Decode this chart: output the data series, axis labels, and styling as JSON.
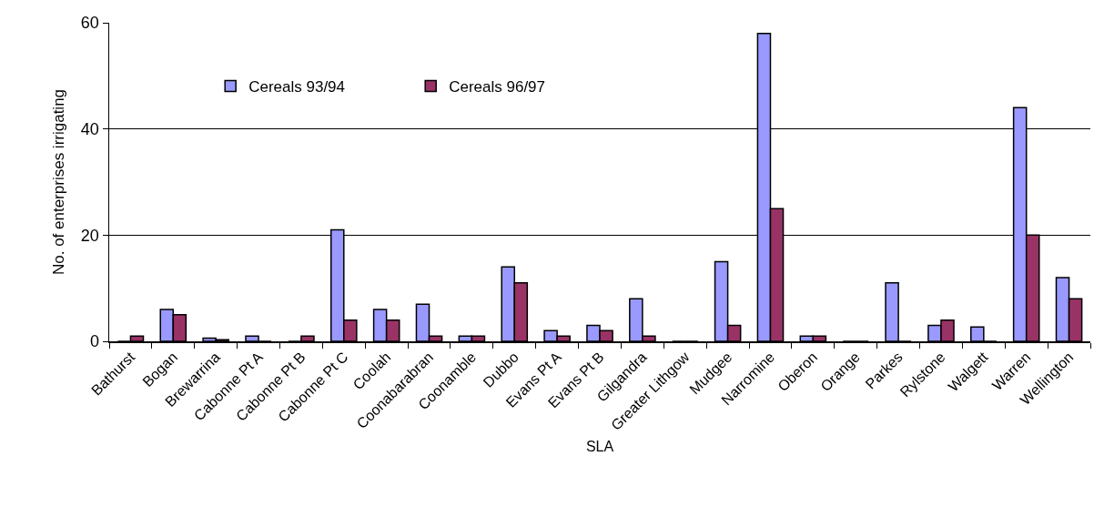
{
  "chart_data": {
    "type": "bar",
    "xlabel": "SLA",
    "ylabel": "No. of enterprises irrigating",
    "categories": [
      "Bathurst",
      "Bogan",
      "Brewarrina",
      "Cabonne Pt A",
      "Cabonne Pt B",
      "Cabonne Pt C",
      "Coolah",
      "Coonabarabran",
      "Coonamble",
      "Dubbo",
      "Evans Pt A",
      "Evans Pt B",
      "Gilgandra",
      "Greater Lithgow",
      "Mudgee",
      "Narromine",
      "Oberon",
      "Orange",
      "Parkes",
      "Rylstone",
      "Walgett",
      "Warren",
      "Wellington"
    ],
    "series": [
      {
        "name": "Cereals 93/94",
        "color": "#9999ff",
        "values": [
          0,
          6,
          0.6,
          1,
          0,
          21,
          6,
          7,
          1,
          14,
          2,
          3,
          8,
          0,
          15,
          58,
          1,
          0,
          11,
          3,
          2.7,
          44,
          12
        ]
      },
      {
        "name": "Cereals 96/97",
        "color": "#993366",
        "values": [
          1,
          5,
          0.3,
          0,
          1,
          4,
          4,
          1,
          1,
          11,
          1,
          2,
          1,
          0,
          3,
          25,
          1,
          0,
          0,
          4,
          0,
          20,
          8
        ]
      }
    ],
    "ylim": [
      0,
      60
    ],
    "yticks": [
      0,
      20,
      40,
      60
    ],
    "grid": "y",
    "legend": "top left"
  }
}
